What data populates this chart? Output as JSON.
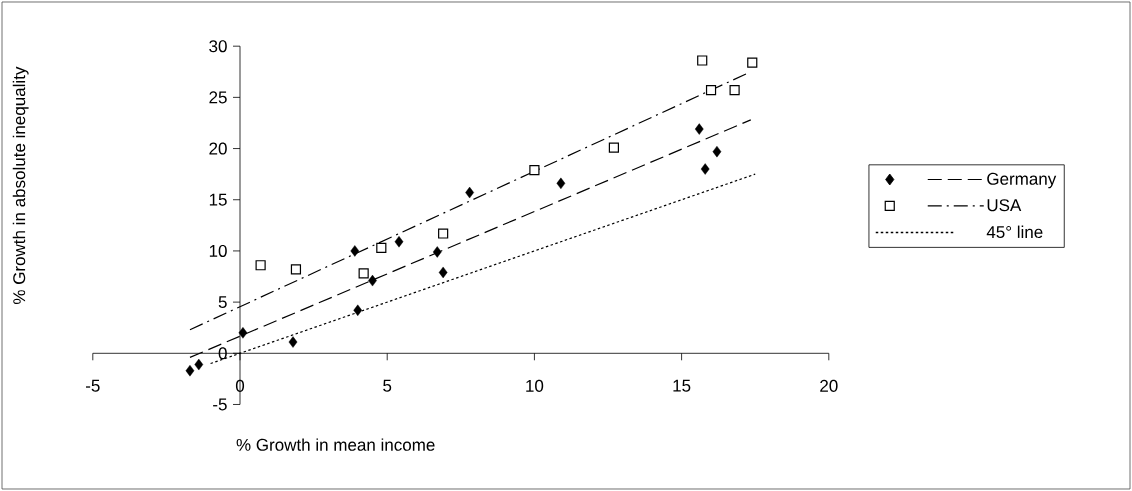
{
  "chart_data": {
    "type": "scatter",
    "xlabel": "% Growth in mean income",
    "ylabel": "% Growth in absolute inequality",
    "xlim": [
      -5,
      20
    ],
    "ylim": [
      -5,
      30
    ],
    "xticks": [
      -5,
      0,
      5,
      10,
      15,
      20
    ],
    "yticks": [
      -5,
      0,
      5,
      10,
      15,
      20,
      25,
      30
    ],
    "legend": "right",
    "series": [
      {
        "name": "Germany",
        "marker": "diamond",
        "color": "#000000",
        "x": [
          -1.7,
          -1.4,
          0.1,
          1.8,
          3.9,
          4.0,
          4.5,
          5.4,
          6.7,
          6.9,
          7.8,
          10.9,
          15.6,
          15.8,
          16.2
        ],
        "values": [
          -1.7,
          -1.1,
          2.0,
          1.1,
          10.0,
          4.2,
          7.1,
          10.9,
          9.9,
          7.9,
          15.7,
          16.6,
          21.9,
          18.0,
          19.7
        ]
      },
      {
        "type": "line",
        "line_style": "dashed",
        "color": "#000000",
        "x": [
          -1.7,
          17.35
        ],
        "values": [
          -0.4,
          22.8
        ]
      },
      {
        "name": "USA",
        "marker": "square",
        "color": "#000000",
        "x": [
          0.7,
          1.9,
          4.2,
          4.8,
          6.9,
          10.0,
          12.7,
          15.7,
          16.0,
          16.8,
          17.4
        ],
        "values": [
          8.6,
          8.2,
          7.8,
          10.3,
          11.7,
          17.9,
          20.1,
          28.6,
          25.7,
          25.7,
          28.4
        ]
      },
      {
        "type": "line",
        "line_style": "dashdot",
        "color": "#000000",
        "x": [
          -1.7,
          17.2
        ],
        "values": [
          2.3,
          27.3
        ]
      },
      {
        "name": "45° line",
        "type": "line",
        "line_style": "dotted",
        "color": "#000000",
        "x": [
          -1,
          17.5
        ],
        "values": [
          -1,
          17.5
        ]
      }
    ]
  }
}
